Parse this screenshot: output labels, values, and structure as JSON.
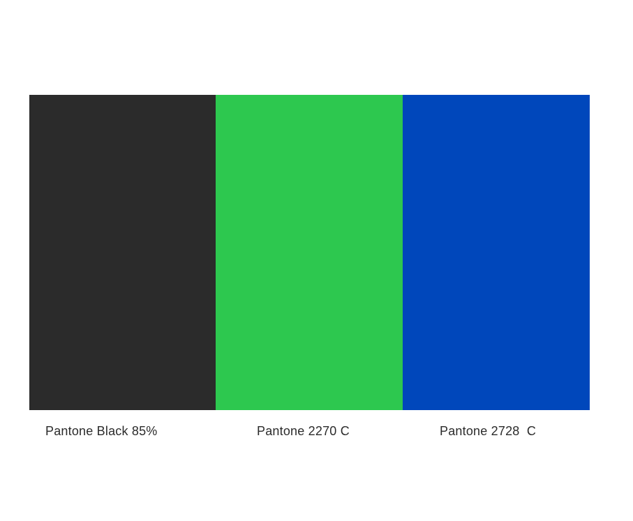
{
  "swatches": [
    {
      "name": "Pantone Black 85%",
      "color": "#2b2b2b"
    },
    {
      "name": "Pantone 2270 C",
      "color": "#2dc84f"
    },
    {
      "name": "Pantone 2728  C",
      "color": "#0047bb"
    }
  ]
}
